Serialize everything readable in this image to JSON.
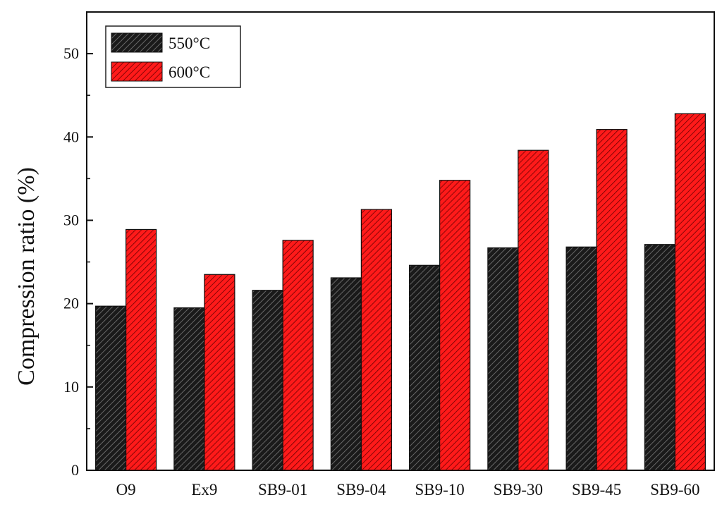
{
  "chart_data": {
    "type": "bar",
    "title": "",
    "xlabel": "",
    "ylabel": "Compression ratio (%)",
    "ylim": [
      0,
      55
    ],
    "yticks": [
      0,
      10,
      20,
      30,
      40,
      50
    ],
    "categories": [
      "O9",
      "Ex9",
      "SB9-01",
      "SB9-04",
      "SB9-10",
      "SB9-30",
      "SB9-45",
      "SB9-60"
    ],
    "series": [
      {
        "name": "550°C",
        "color": "#1a1a1a",
        "values": [
          19.7,
          19.5,
          21.6,
          23.1,
          24.6,
          26.7,
          26.8,
          27.1
        ]
      },
      {
        "name": "600°C",
        "color": "#ff1a1a",
        "values": [
          28.9,
          23.5,
          27.6,
          31.3,
          34.8,
          38.4,
          40.9,
          42.8
        ]
      }
    ],
    "legend": "top-left",
    "grid": false,
    "pattern": "diagonal-hatch"
  }
}
